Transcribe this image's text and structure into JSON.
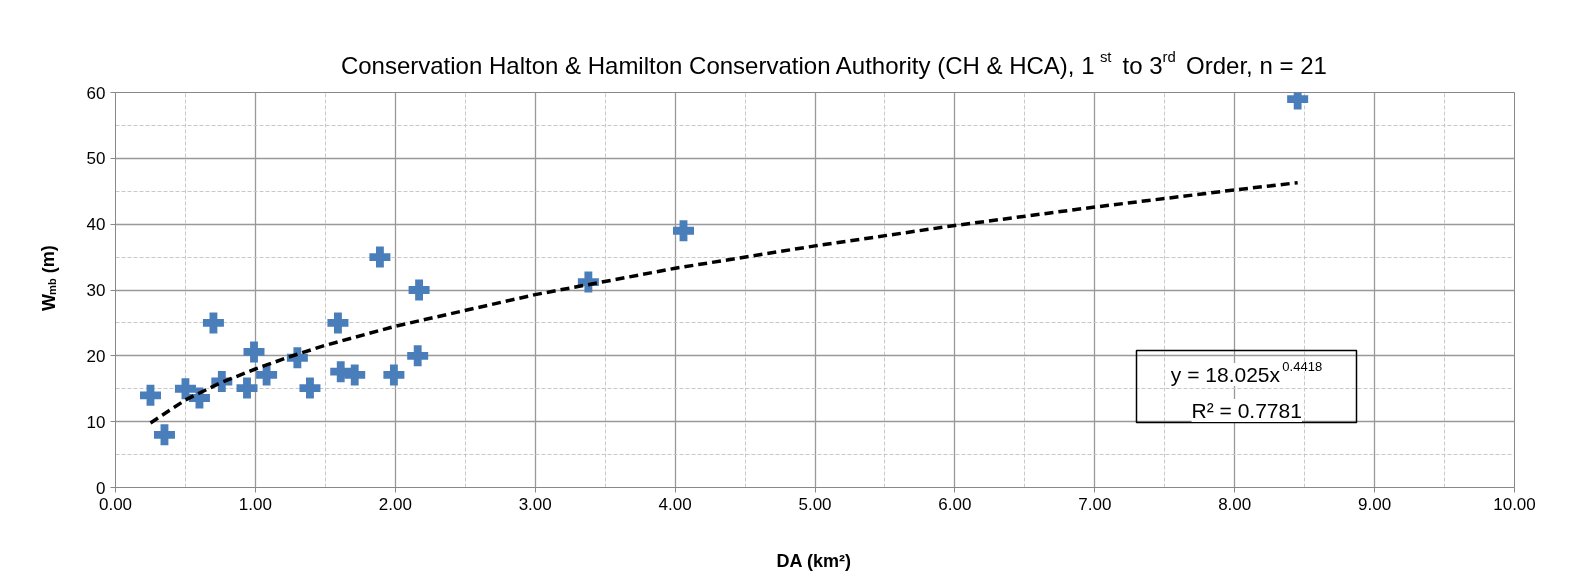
{
  "chart_data": {
    "type": "scatter",
    "title": "Conservation Halton & Hamilton Conservation Authority (CH & HCA), 1$^{st}$ to 3$^{rd}$ Order, n = 21",
    "xlabel": "DA (km²)",
    "ylabel": "W$_{mb}$ (m)",
    "xlim": [
      0,
      10
    ],
    "xticks": [
      {
        "value": 0,
        "label": "0.00"
      },
      {
        "value": 1,
        "label": "1.00"
      },
      {
        "value": 2,
        "label": "2.00"
      },
      {
        "value": 3,
        "label": "3.00"
      },
      {
        "value": 4,
        "label": "4.00"
      },
      {
        "value": 5,
        "label": "5.00"
      },
      {
        "value": 6,
        "label": "6.00"
      },
      {
        "value": 7,
        "label": "7.00"
      },
      {
        "value": 8,
        "label": "8.00"
      },
      {
        "value": 9,
        "label": "9.00"
      },
      {
        "value": 10,
        "label": "10.00"
      }
    ],
    "ylim": [
      0,
      60
    ],
    "yticks": [
      0,
      10,
      20,
      30,
      40,
      50,
      60
    ],
    "grid": true,
    "legend": false,
    "series": [
      {
        "type": "scatter",
        "color": "#4a7ebb",
        "marker": "cross",
        "x": [
          0.25,
          0.35,
          0.5,
          0.6,
          0.7,
          0.76,
          0.94,
          0.99,
          1.08,
          1.3,
          1.39,
          1.59,
          1.61,
          1.71,
          1.89,
          1.99,
          2.17,
          2.16,
          3.38,
          4.06,
          8.45
        ],
        "values": [
          14,
          8,
          15,
          13.6,
          25,
          16.1,
          15.1,
          20.6,
          17.1,
          19.7,
          15.1,
          25,
          17.6,
          17.1,
          35,
          17.1,
          30,
          20,
          31.2,
          39,
          59
        ]
      },
      {
        "type": "line",
        "color": "#000000",
        "line_style": "dashed",
        "marker": "none",
        "x": [
          0.25,
          0.5,
          0.75,
          1,
          1.25,
          1.5,
          2,
          3,
          4,
          5,
          6,
          7,
          8,
          8.45
        ],
        "values": [
          9.8,
          13.3,
          15.9,
          18.0,
          19.9,
          21.6,
          24.5,
          29.3,
          33.3,
          36.7,
          39.8,
          42.6,
          45.2,
          46.3
        ]
      }
    ],
    "annotations": [
      "y = 18.025x$^{0.4418}$",
      "R² = 0.7781"
    ]
  }
}
